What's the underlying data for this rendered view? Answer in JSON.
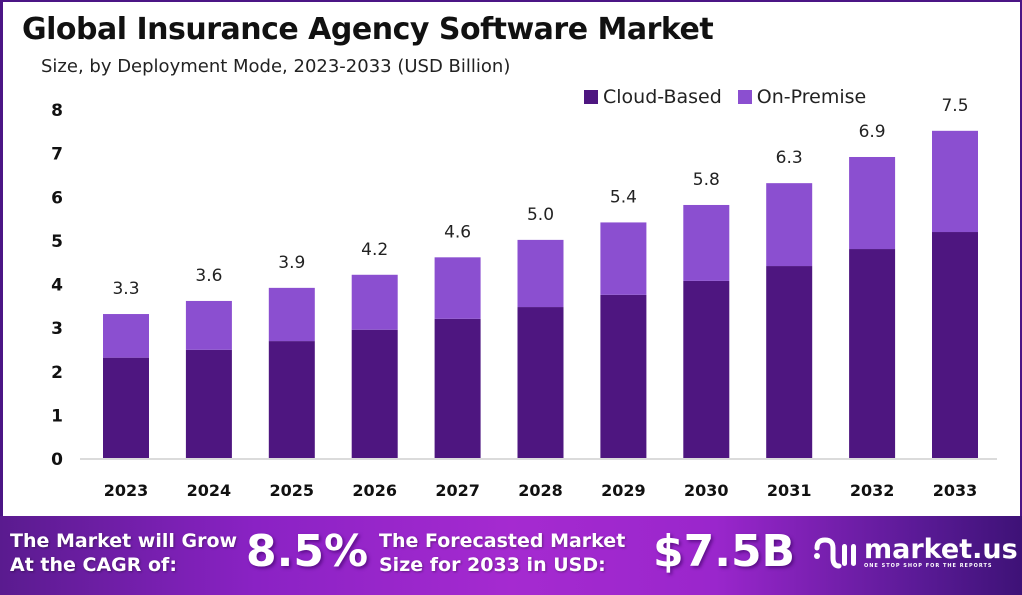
{
  "header": {
    "title": "Global Insurance Agency Software Market",
    "subtitle": "Size, by Deployment Mode, 2023-2033 (USD Billion)"
  },
  "colors": {
    "cloud": "#4e1680",
    "premise": "#8b4fd0",
    "frame": "#4b1585"
  },
  "chart_data": {
    "type": "bar",
    "stacked": true,
    "title": "Global Insurance Agency Software Market",
    "subtitle": "Size, by Deployment Mode, 2023-2033 (USD Billion)",
    "xlabel": "",
    "ylabel": "",
    "ylim": [
      0,
      8
    ],
    "yticks": [
      "0",
      "1",
      "2",
      "3",
      "4",
      "5",
      "6",
      "7",
      "8"
    ],
    "grid": false,
    "legend_position": "top-right",
    "categories": [
      "2023",
      "2024",
      "2025",
      "2026",
      "2027",
      "2028",
      "2029",
      "2030",
      "2031",
      "2032",
      "2033"
    ],
    "series": [
      {
        "name": "Cloud-Based",
        "color": "#4e1680",
        "values": [
          2.3,
          2.48,
          2.68,
          2.94,
          3.19,
          3.46,
          3.74,
          4.06,
          4.4,
          4.79,
          5.18
        ]
      },
      {
        "name": "On-Premise",
        "color": "#8b4fd0",
        "values": [
          1.0,
          1.12,
          1.22,
          1.26,
          1.41,
          1.54,
          1.66,
          1.74,
          1.9,
          2.11,
          2.32
        ]
      }
    ],
    "totals": [
      3.3,
      3.6,
      3.9,
      4.2,
      4.6,
      5.0,
      5.4,
      5.8,
      6.3,
      6.9,
      7.5
    ],
    "total_labels": [
      "3.3",
      "3.6",
      "3.9",
      "4.2",
      "4.6",
      "5.0",
      "5.4",
      "5.8",
      "6.3",
      "6.9",
      "7.5"
    ]
  },
  "legend": [
    {
      "label": "Cloud-Based"
    },
    {
      "label": "On-Premise"
    }
  ],
  "banner": {
    "cagr_text_line1": "The Market will Grow",
    "cagr_text_line2": "At the CAGR of:",
    "cagr_value": "8.5%",
    "forecast_text_line1": "The Forecasted Market",
    "forecast_text_line2": "Size for 2033 in USD:",
    "forecast_value": "$7.5B",
    "logo_name": "market.us",
    "logo_tagline": "ONE STOP SHOP FOR THE REPORTS"
  }
}
